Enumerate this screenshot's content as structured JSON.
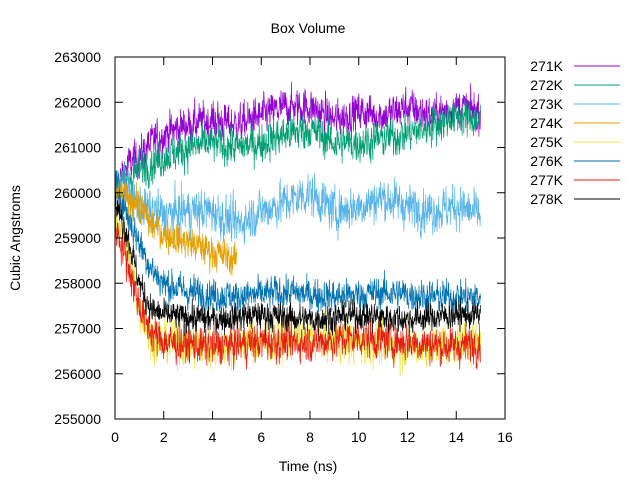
{
  "chart_data": {
    "type": "line",
    "title": "Box Volume",
    "xlabel": "Time (ns)",
    "ylabel": "Cubic Angstroms",
    "xlim": [
      0,
      16
    ],
    "ylim": [
      255000,
      263000
    ],
    "x_ticks": [
      0,
      2,
      4,
      6,
      8,
      10,
      12,
      14,
      16
    ],
    "y_ticks": [
      255000,
      256000,
      257000,
      258000,
      259000,
      260000,
      261000,
      262000,
      263000
    ],
    "grid": false,
    "legend_position": "top-right outside",
    "series": [
      {
        "name": "271K",
        "color": "#9400d3",
        "x_end": 15,
        "points": [
          [
            0,
            260000
          ],
          [
            0.5,
            260600
          ],
          [
            1,
            260800
          ],
          [
            1.5,
            261100
          ],
          [
            2,
            261300
          ],
          [
            3,
            261500
          ],
          [
            4,
            261600
          ],
          [
            5,
            261500
          ],
          [
            6,
            261700
          ],
          [
            7,
            261900
          ],
          [
            8,
            261900
          ],
          [
            9,
            261600
          ],
          [
            10,
            261800
          ],
          [
            11,
            261700
          ],
          [
            12,
            261900
          ],
          [
            13,
            261700
          ],
          [
            14,
            261900
          ],
          [
            15,
            261800
          ]
        ],
        "noise": 400
      },
      {
        "name": "272K",
        "color": "#009e73",
        "x_end": 15,
        "points": [
          [
            0,
            260000
          ],
          [
            0.5,
            260300
          ],
          [
            1,
            260500
          ],
          [
            2,
            260800
          ],
          [
            3,
            261000
          ],
          [
            4,
            261100
          ],
          [
            5,
            261000
          ],
          [
            6,
            261100
          ],
          [
            7,
            261300
          ],
          [
            8,
            261400
          ],
          [
            9,
            261100
          ],
          [
            10,
            261100
          ],
          [
            11,
            261200
          ],
          [
            12,
            261300
          ],
          [
            13,
            261500
          ],
          [
            14,
            261700
          ],
          [
            15,
            261600
          ]
        ],
        "noise": 400
      },
      {
        "name": "273K",
        "color": "#56b4e9",
        "x_end": 15,
        "points": [
          [
            0,
            260200
          ],
          [
            0.5,
            260000
          ],
          [
            1,
            259700
          ],
          [
            2,
            259500
          ],
          [
            3,
            259600
          ],
          [
            4,
            259600
          ],
          [
            5,
            259300
          ],
          [
            6,
            259600
          ],
          [
            7,
            259800
          ],
          [
            8,
            260000
          ],
          [
            9,
            259600
          ],
          [
            10,
            259700
          ],
          [
            11,
            259900
          ],
          [
            12,
            259700
          ],
          [
            13,
            259600
          ],
          [
            14,
            259700
          ],
          [
            15,
            259500
          ]
        ],
        "noise": 450
      },
      {
        "name": "274K",
        "color": "#e69f00",
        "x_end": 5,
        "points": [
          [
            0,
            260000
          ],
          [
            0.5,
            259900
          ],
          [
            1,
            259700
          ],
          [
            1.5,
            259300
          ],
          [
            2,
            259100
          ],
          [
            2.5,
            259000
          ],
          [
            3,
            258900
          ],
          [
            3.5,
            258800
          ],
          [
            4,
            258700
          ],
          [
            4.5,
            258600
          ],
          [
            5,
            258500
          ]
        ],
        "noise": 350
      },
      {
        "name": "275K",
        "color": "#f0e442",
        "x_end": 15,
        "points": [
          [
            0,
            259600
          ],
          [
            0.5,
            258800
          ],
          [
            1,
            257500
          ],
          [
            1.5,
            256800
          ],
          [
            2,
            256700
          ],
          [
            4,
            256600
          ],
          [
            6,
            256700
          ],
          [
            8,
            256800
          ],
          [
            10,
            256700
          ],
          [
            12,
            256600
          ],
          [
            14,
            256700
          ],
          [
            15,
            256700
          ]
        ],
        "noise": 450
      },
      {
        "name": "276K",
        "color": "#0072b2",
        "x_end": 15,
        "points": [
          [
            0,
            260300
          ],
          [
            0.5,
            259500
          ],
          [
            1,
            258900
          ],
          [
            1.5,
            258300
          ],
          [
            2,
            258000
          ],
          [
            3,
            257800
          ],
          [
            5,
            257700
          ],
          [
            7,
            257800
          ],
          [
            9,
            257700
          ],
          [
            11,
            257800
          ],
          [
            13,
            257700
          ],
          [
            15,
            257700
          ]
        ],
        "noise": 350
      },
      {
        "name": "277K",
        "color": "#e51e10",
        "x_end": 15,
        "points": [
          [
            0,
            259300
          ],
          [
            0.5,
            258500
          ],
          [
            1,
            257500
          ],
          [
            1.5,
            256900
          ],
          [
            2,
            256700
          ],
          [
            4,
            256600
          ],
          [
            6,
            256700
          ],
          [
            8,
            256700
          ],
          [
            10,
            256800
          ],
          [
            12,
            256700
          ],
          [
            14,
            256600
          ],
          [
            15,
            256700
          ]
        ],
        "noise": 400
      },
      {
        "name": "278K",
        "color": "#000000",
        "x_end": 15,
        "points": [
          [
            0,
            259800
          ],
          [
            0.5,
            259100
          ],
          [
            1,
            258000
          ],
          [
            1.5,
            257400
          ],
          [
            2,
            257300
          ],
          [
            4,
            257200
          ],
          [
            6,
            257300
          ],
          [
            8,
            257200
          ],
          [
            10,
            257300
          ],
          [
            12,
            257200
          ],
          [
            14,
            257300
          ],
          [
            15,
            257300
          ]
        ],
        "noise": 300
      }
    ]
  }
}
